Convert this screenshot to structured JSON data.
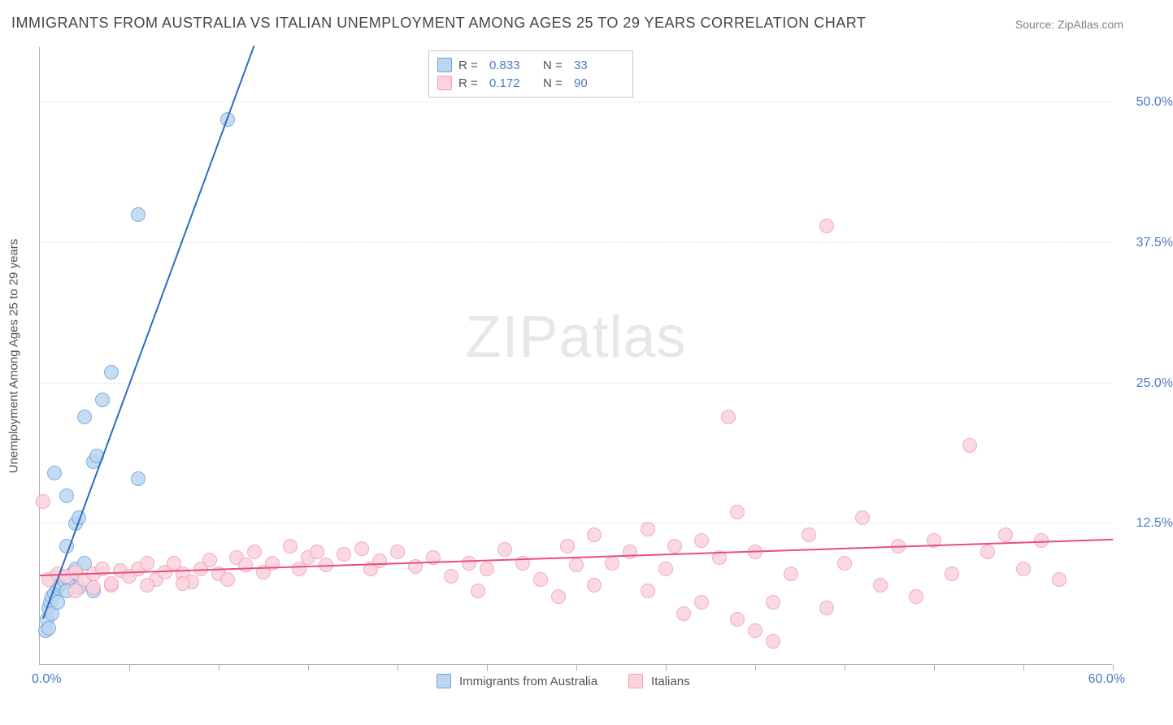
{
  "title": "IMMIGRANTS FROM AUSTRALIA VS ITALIAN UNEMPLOYMENT AMONG AGES 25 TO 29 YEARS CORRELATION CHART",
  "source_label": "Source: ",
  "source_link": "ZipAtlas.com",
  "y_axis_title": "Unemployment Among Ages 25 to 29 years",
  "watermark": {
    "zip": "ZIP",
    "atlas": "atlas"
  },
  "chart": {
    "type": "scatter",
    "xlim": [
      0,
      60
    ],
    "ylim": [
      0,
      55
    ],
    "x_origin_label": "0.0%",
    "x_max_label": "60.0%",
    "x_ticks": [
      5,
      10,
      15,
      20,
      25,
      30,
      35,
      40,
      45,
      50,
      55,
      60
    ],
    "y_gridlines": [
      {
        "value": 12.5,
        "label": "12.5%"
      },
      {
        "value": 25.0,
        "label": "25.0%"
      },
      {
        "value": 37.5,
        "label": "37.5%"
      },
      {
        "value": 50.0,
        "label": "50.0%"
      }
    ],
    "background_color": "#ffffff",
    "grid_color": "#e2e2e2",
    "axis_color": "#b0b0b0",
    "tick_label_color": "#4a7ac7",
    "axis_title_color": "#505258",
    "marker_radius": 9,
    "marker_stroke_width": 1.5,
    "trend_line_width": 2,
    "series": [
      {
        "name": "Immigrants from Australia",
        "fill_color": "#bcd6f0",
        "stroke_color": "#6ba3dd",
        "trend_color": "#2e6cc0",
        "R": "0.833",
        "N": "33",
        "trend": {
          "x1": 0.2,
          "y1": 4.0,
          "x2": 12.0,
          "y2": 55.0
        },
        "points": [
          [
            0.3,
            3.0
          ],
          [
            0.4,
            4.0
          ],
          [
            0.5,
            5.0
          ],
          [
            0.6,
            5.5
          ],
          [
            0.7,
            6.0
          ],
          [
            0.8,
            6.3
          ],
          [
            1.0,
            6.8
          ],
          [
            1.1,
            7.0
          ],
          [
            1.2,
            7.2
          ],
          [
            1.4,
            7.3
          ],
          [
            1.6,
            7.5
          ],
          [
            1.8,
            8.0
          ],
          [
            2.0,
            8.5
          ],
          [
            0.5,
            3.2
          ],
          [
            0.7,
            4.5
          ],
          [
            1.0,
            5.5
          ],
          [
            1.5,
            6.5
          ],
          [
            2.2,
            6.8
          ],
          [
            3.0,
            6.5
          ],
          [
            2.0,
            12.5
          ],
          [
            2.2,
            13.0
          ],
          [
            3.0,
            18.0
          ],
          [
            3.2,
            18.5
          ],
          [
            1.5,
            15.0
          ],
          [
            0.8,
            17.0
          ],
          [
            2.5,
            9.0
          ],
          [
            5.5,
            16.5
          ],
          [
            3.5,
            23.5
          ],
          [
            4.0,
            26.0
          ],
          [
            5.5,
            40.0
          ],
          [
            10.5,
            48.5
          ],
          [
            2.5,
            22.0
          ],
          [
            1.5,
            10.5
          ]
        ]
      },
      {
        "name": "Italians",
        "fill_color": "#fbd3dd",
        "stroke_color": "#f29db3",
        "trend_color": "#e84f7a",
        "R": "0.172",
        "N": "90",
        "trend": {
          "x1": 0.0,
          "y1": 7.8,
          "x2": 60.0,
          "y2": 11.0
        },
        "points": [
          [
            0.5,
            7.5
          ],
          [
            1.0,
            8.0
          ],
          [
            1.5,
            7.8
          ],
          [
            2.0,
            8.2
          ],
          [
            2.5,
            7.5
          ],
          [
            3.0,
            8.0
          ],
          [
            3.5,
            8.5
          ],
          [
            4.0,
            7.0
          ],
          [
            4.5,
            8.3
          ],
          [
            5.0,
            7.8
          ],
          [
            5.5,
            8.5
          ],
          [
            6.0,
            9.0
          ],
          [
            6.5,
            7.5
          ],
          [
            7.0,
            8.2
          ],
          [
            7.5,
            9.0
          ],
          [
            8.0,
            8.0
          ],
          [
            8.5,
            7.3
          ],
          [
            9.0,
            8.5
          ],
          [
            9.5,
            9.3
          ],
          [
            10.0,
            8.0
          ],
          [
            10.5,
            7.5
          ],
          [
            11.0,
            9.5
          ],
          [
            11.5,
            8.8
          ],
          [
            12.0,
            10.0
          ],
          [
            12.5,
            8.2
          ],
          [
            13.0,
            9.0
          ],
          [
            14.0,
            10.5
          ],
          [
            14.5,
            8.5
          ],
          [
            15.0,
            9.5
          ],
          [
            15.5,
            10.0
          ],
          [
            16.0,
            8.8
          ],
          [
            17.0,
            9.8
          ],
          [
            18.0,
            10.3
          ],
          [
            18.5,
            8.5
          ],
          [
            19.0,
            9.2
          ],
          [
            20.0,
            10.0
          ],
          [
            21.0,
            8.7
          ],
          [
            22.0,
            9.5
          ],
          [
            23.0,
            7.8
          ],
          [
            24.0,
            9.0
          ],
          [
            24.5,
            6.5
          ],
          [
            25.0,
            8.5
          ],
          [
            26.0,
            10.2
          ],
          [
            27.0,
            9.0
          ],
          [
            28.0,
            7.5
          ],
          [
            29.0,
            6.0
          ],
          [
            29.5,
            10.5
          ],
          [
            30.0,
            8.8
          ],
          [
            31.0,
            11.5
          ],
          [
            31.0,
            7.0
          ],
          [
            32.0,
            9.0
          ],
          [
            33.0,
            10.0
          ],
          [
            34.0,
            12.0
          ],
          [
            34.0,
            6.5
          ],
          [
            35.0,
            8.5
          ],
          [
            35.5,
            10.5
          ],
          [
            36.0,
            4.5
          ],
          [
            37.0,
            11.0
          ],
          [
            37.0,
            5.5
          ],
          [
            38.0,
            9.5
          ],
          [
            38.5,
            22.0
          ],
          [
            39.0,
            13.5
          ],
          [
            39.0,
            4.0
          ],
          [
            40.0,
            10.0
          ],
          [
            40.0,
            3.0
          ],
          [
            41.0,
            5.5
          ],
          [
            41.0,
            2.0
          ],
          [
            42.0,
            8.0
          ],
          [
            43.0,
            11.5
          ],
          [
            44.0,
            5.0
          ],
          [
            44.0,
            39.0
          ],
          [
            45.0,
            9.0
          ],
          [
            46.0,
            13.0
          ],
          [
            47.0,
            7.0
          ],
          [
            48.0,
            10.5
          ],
          [
            49.0,
            6.0
          ],
          [
            50.0,
            11.0
          ],
          [
            51.0,
            8.0
          ],
          [
            52.0,
            19.5
          ],
          [
            53.0,
            10.0
          ],
          [
            54.0,
            11.5
          ],
          [
            55.0,
            8.5
          ],
          [
            56.0,
            11.0
          ],
          [
            57.0,
            7.5
          ],
          [
            2.0,
            6.5
          ],
          [
            3.0,
            6.8
          ],
          [
            4.0,
            7.2
          ],
          [
            6.0,
            7.0
          ],
          [
            8.0,
            7.2
          ],
          [
            0.2,
            14.5
          ]
        ]
      }
    ]
  }
}
